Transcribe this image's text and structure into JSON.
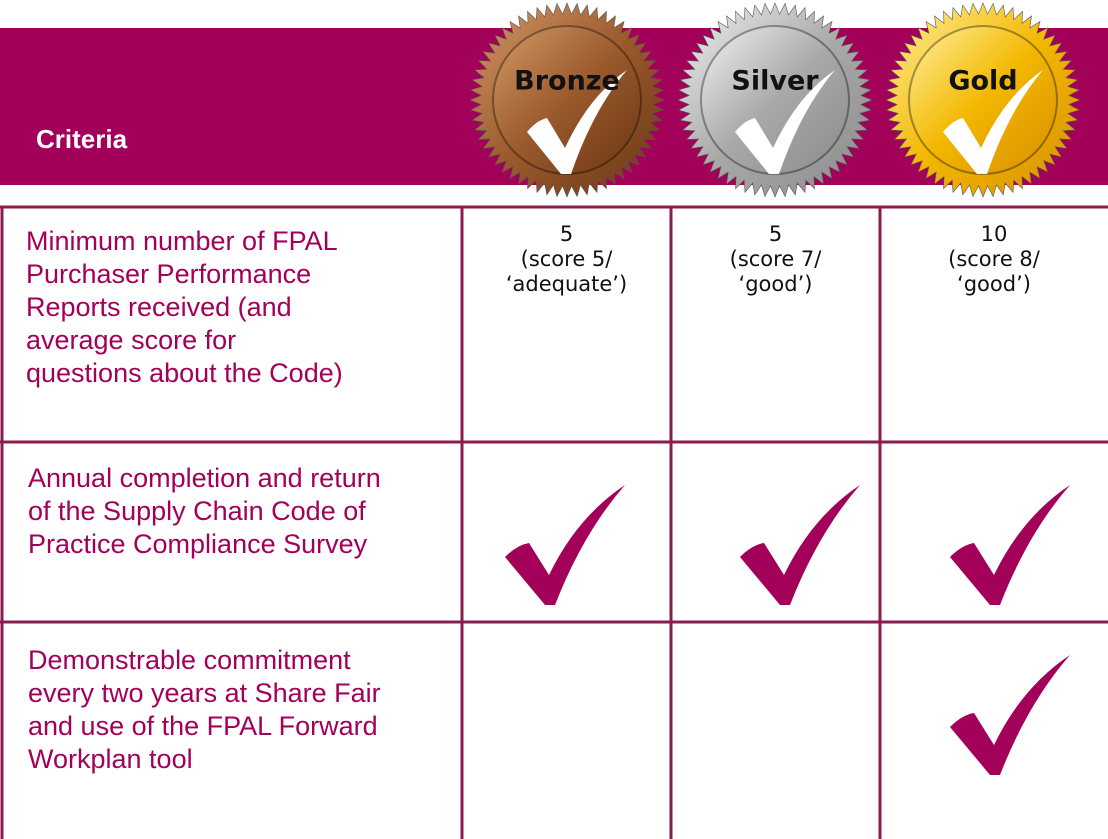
{
  "header": {
    "title": "Criteria",
    "levels": [
      "Bronze",
      "Silver",
      "Gold"
    ]
  },
  "table": {
    "rows": [
      {
        "criterion": [
          "Minimum number of FPAL",
          "Purchaser Performance",
          "Reports received (and",
          "average score for",
          "questions about the Code)"
        ],
        "cells": [
          [
            "5",
            "(score 5/",
            "‘adequate’)"
          ],
          [
            "5",
            "(score 7/",
            "‘good’)"
          ],
          [
            "10",
            "(score 8/",
            "‘good’)"
          ]
        ]
      },
      {
        "criterion": [
          "Annual completion and return",
          "of the Supply Chain Code of",
          "Practice Compliance Survey"
        ]
      },
      {
        "criterion": [
          "Demonstrable commitment",
          "every two years at Share Fair",
          "and use of the FPAL Forward",
          "Workplan tool"
        ]
      }
    ]
  }
}
